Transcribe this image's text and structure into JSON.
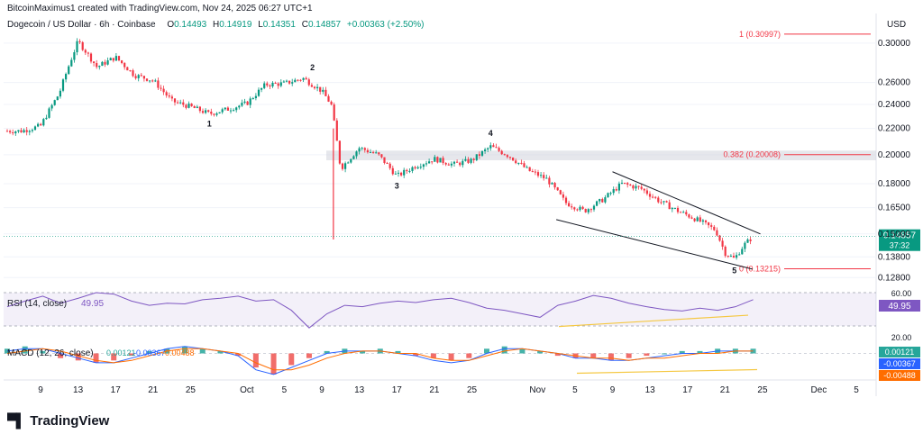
{
  "header": {
    "creator": "BitcoinMaximus1 created with TradingView.com, Nov 24, 2025 06:27 UTC+1"
  },
  "legend": {
    "symbol": "Dogecoin / US Dollar · 6h · Coinbase",
    "o_label": "O",
    "o": "0.14493",
    "h_label": "H",
    "h": "0.14919",
    "l_label": "L",
    "l": "0.14351",
    "c_label": "C",
    "c": "0.14857",
    "change": "+0.00363 (+2.50%)"
  },
  "currency": "USD",
  "colors": {
    "up": "#089981",
    "down": "#f23645",
    "rsi": "#7e57c2",
    "fib": "#f23645",
    "wedge": "#131722",
    "divergence": "#f5c842",
    "macd_line": "#2962ff",
    "signal_line": "#ff6d00"
  },
  "chart_data": {
    "type": "candlestick",
    "title": "Dogecoin / US Dollar · 6h · Coinbase",
    "y_axis": {
      "scale": "log",
      "ticks": [
        "0.30000",
        "0.26000",
        "0.24000",
        "0.22000",
        "0.20000",
        "0.18000",
        "0.16500",
        "0.15000",
        "0.13800",
        "0.12800"
      ]
    },
    "x_axis": {
      "ticks": [
        "9",
        "13",
        "17",
        "21",
        "25",
        "Oct",
        "5",
        "9",
        "13",
        "17",
        "21",
        "25",
        "Nov",
        "5",
        "9",
        "13",
        "17",
        "21",
        "25",
        "Dec",
        "5"
      ]
    },
    "price_path": [
      [
        "Sep 7",
        0.218
      ],
      [
        "Sep 9",
        0.222
      ],
      [
        "Sep 11",
        0.25
      ],
      [
        "Sep 13",
        0.302
      ],
      [
        "Sep 15",
        0.275
      ],
      [
        "Sep 17",
        0.285
      ],
      [
        "Sep 19",
        0.267
      ],
      [
        "Sep 21",
        0.262
      ],
      [
        "Sep 23",
        0.243
      ],
      [
        "Sep 25",
        0.238
      ],
      [
        "Sep 27",
        0.232
      ],
      [
        "Sep 29",
        0.236
      ],
      [
        "Oct 1",
        0.241
      ],
      [
        "Oct 3",
        0.258
      ],
      [
        "Oct 5",
        0.259
      ],
      [
        "Oct 7",
        0.264
      ],
      [
        "Oct 9",
        0.252
      ],
      [
        "Oct 10",
        0.24
      ],
      [
        "Oct 11",
        0.19
      ],
      [
        "Oct 13",
        0.205
      ],
      [
        "Oct 15",
        0.2
      ],
      [
        "Oct 17",
        0.185
      ],
      [
        "Oct 19",
        0.192
      ],
      [
        "Oct 21",
        0.197
      ],
      [
        "Oct 23",
        0.193
      ],
      [
        "Oct 25",
        0.196
      ],
      [
        "Oct 27",
        0.206
      ],
      [
        "Oct 29",
        0.199
      ],
      [
        "Oct 31",
        0.189
      ],
      [
        "Nov 2",
        0.183
      ],
      [
        "Nov 4",
        0.168
      ],
      [
        "Nov 6",
        0.163
      ],
      [
        "Nov 8",
        0.17
      ],
      [
        "Nov 10",
        0.18
      ],
      [
        "Nov 12",
        0.177
      ],
      [
        "Nov 14",
        0.169
      ],
      [
        "Nov 16",
        0.163
      ],
      [
        "Nov 18",
        0.158
      ],
      [
        "Nov 20",
        0.152
      ],
      [
        "Nov 21",
        0.14
      ],
      [
        "Nov 22",
        0.137
      ],
      [
        "Nov 23",
        0.144
      ],
      [
        "Nov 24",
        0.14857
      ]
    ],
    "wave_labels": [
      {
        "label": "1",
        "date": "Sep 27"
      },
      {
        "label": "2",
        "date": "Oct 8"
      },
      {
        "label": "3",
        "date": "Oct 17"
      },
      {
        "label": "4",
        "date": "Oct 27"
      },
      {
        "label": "5",
        "date": "Nov 22"
      }
    ],
    "fib_levels": [
      {
        "label": "1 (0.30997)",
        "value": 0.30997
      },
      {
        "label": "0.382 (0.20008)",
        "value": 0.20008
      },
      {
        "label": "0 (0.13215)",
        "value": 0.13215
      }
    ],
    "resistance_zone": [
      0.196,
      0.203
    ],
    "falling_wedge": {
      "upper": [
        [
          "Nov 9",
          0.188
        ],
        [
          "Nov 24",
          0.15
        ]
      ],
      "lower": [
        [
          "Nov 3",
          0.158
        ],
        [
          "Nov 22",
          0.132
        ]
      ]
    },
    "last_price": "0.14857",
    "countdown": "37:32",
    "rsi": {
      "label": "RSI (14, close)",
      "value": "49.95",
      "levels": [
        "60.00",
        "20.00"
      ],
      "path": [
        40,
        48,
        55,
        45,
        52,
        60,
        58,
        48,
        42,
        45,
        44,
        50,
        52,
        55,
        48,
        50,
        35,
        10,
        30,
        42,
        40,
        45,
        48,
        46,
        50,
        52,
        46,
        38,
        35,
        30,
        25,
        42,
        48,
        56,
        52,
        45,
        40,
        36,
        34,
        38,
        35,
        40,
        50
      ]
    },
    "macd": {
      "label": "MACD (12, 26, close)",
      "values": [
        "0.00121",
        "-0.00367",
        "-0.00488"
      ],
      "histogram": [
        2,
        3,
        1,
        -2,
        -3,
        -4,
        -3,
        -1,
        1,
        2,
        3,
        2,
        1,
        -1,
        -6,
        -9,
        -5,
        -2,
        1,
        2,
        1,
        2,
        1,
        -1,
        -2,
        -3,
        -2,
        2,
        3,
        2,
        1,
        -1,
        -2,
        -2,
        -3,
        -2,
        -1,
        0,
        1,
        1,
        2,
        2,
        2
      ],
      "macd_line": [
        1,
        2,
        2,
        0,
        -2,
        -4,
        -4,
        -2,
        0,
        2,
        3,
        2,
        1,
        -1,
        -7,
        -9,
        -6,
        -3,
        0,
        1,
        1,
        1,
        0,
        -1,
        -3,
        -4,
        -3,
        0,
        2,
        2,
        1,
        0,
        -2,
        -2,
        -3,
        -3,
        -2,
        -1,
        0,
        0,
        1,
        1,
        1
      ],
      "signal_line": [
        0,
        1,
        2,
        1,
        -1,
        -3,
        -4,
        -3,
        -1,
        1,
        2,
        2,
        1,
        0,
        -4,
        -7,
        -7,
        -5,
        -2,
        0,
        1,
        1,
        0,
        0,
        -2,
        -3,
        -3,
        -1,
        1,
        2,
        1,
        0,
        -1,
        -2,
        -2,
        -3,
        -2,
        -2,
        -1,
        0,
        0,
        1,
        1
      ]
    }
  },
  "footer": {
    "brand": "TradingView"
  }
}
